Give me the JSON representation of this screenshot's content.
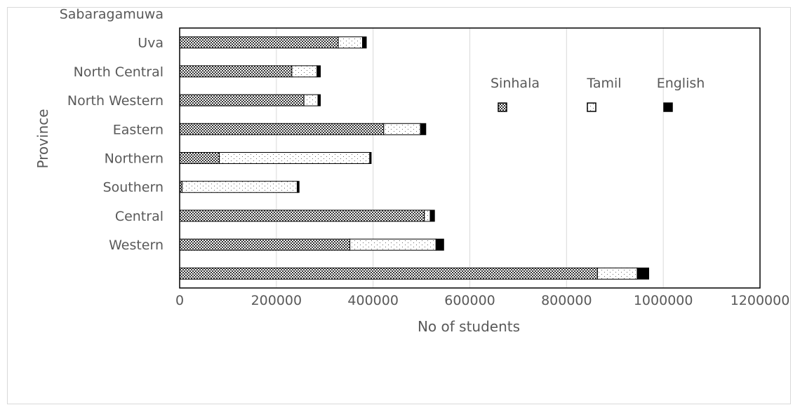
{
  "chart_data": {
    "type": "bar",
    "orientation": "horizontal",
    "stacked": true,
    "xlabel": "No of students",
    "ylabel": "Province",
    "xlim": [
      0,
      1200000
    ],
    "x_ticks": [
      "0",
      "200000",
      "400000",
      "600000",
      "800000",
      "1000000",
      "1200000"
    ],
    "grid": "vertical gridlines",
    "legend_position": "top-right",
    "categories_printed": [
      "Sabaragamuwa",
      "Uva",
      "North Central",
      "North Western",
      "Eastern",
      "Northern",
      "Southern",
      "Central",
      "Western"
    ],
    "series": [
      {
        "name": "Sinhala",
        "pattern": "checker",
        "values": [
          328000,
          232000,
          257000,
          422000,
          82000,
          5000,
          506000,
          352000,
          864000
        ]
      },
      {
        "name": "Tamil",
        "pattern": "dots",
        "values": [
          50000,
          52000,
          29000,
          76000,
          311000,
          238000,
          12000,
          178000,
          82000
        ]
      },
      {
        "name": "English",
        "pattern": "solid",
        "values": [
          8000,
          7000,
          5000,
          11000,
          3000,
          4000,
          9000,
          16000,
          24000
        ]
      }
    ],
    "colors": {
      "bar_fill": "#333333",
      "gap_fill": "#ffffff",
      "solid": "#000000",
      "grid": "#d9d9d9",
      "text": "#595959"
    }
  }
}
